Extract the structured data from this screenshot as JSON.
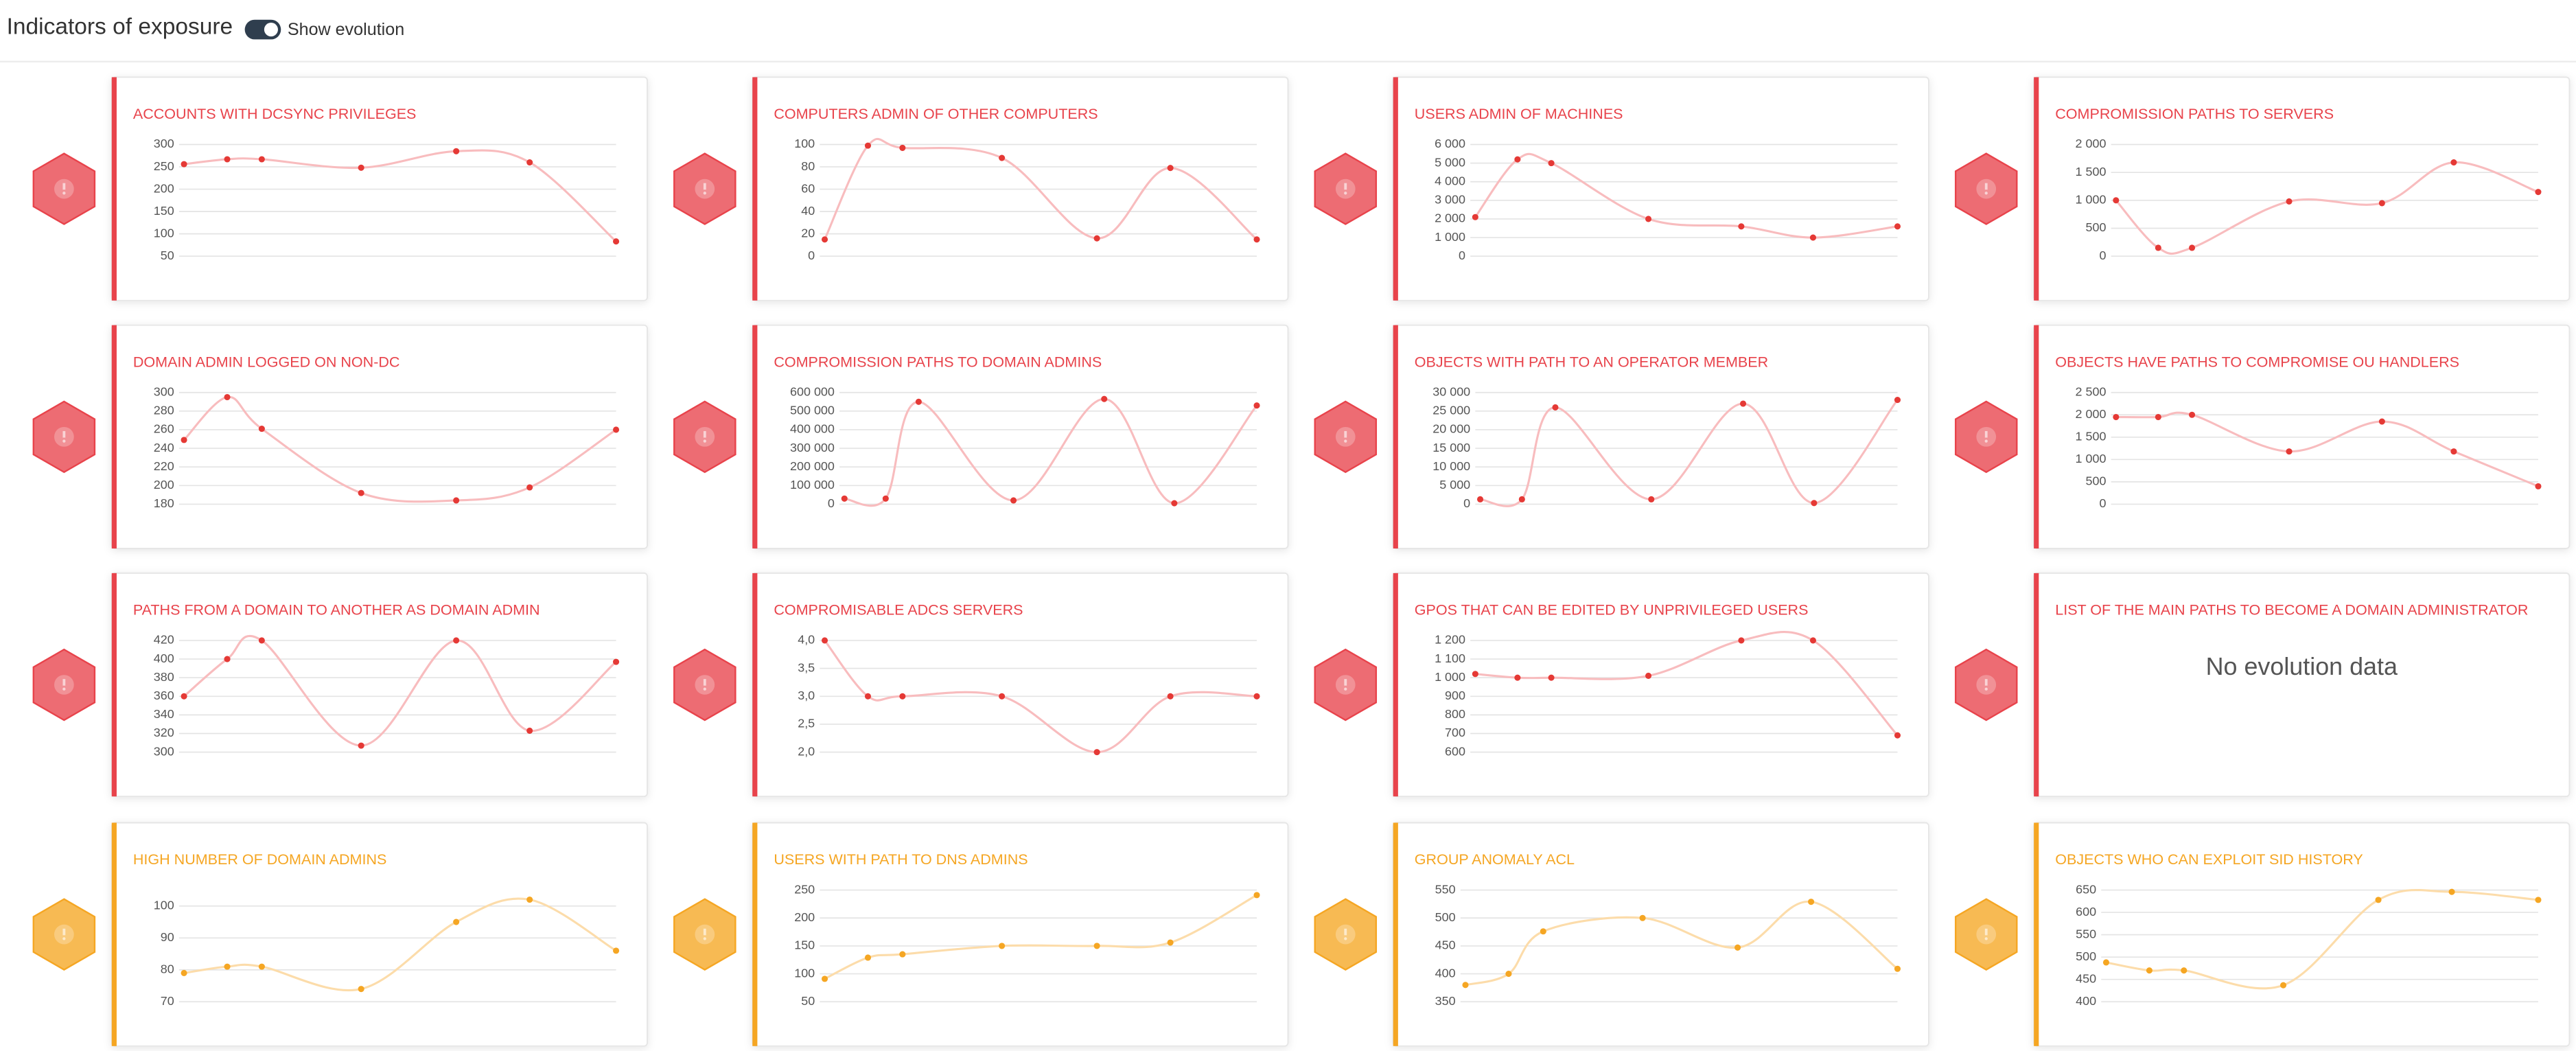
{
  "header": {
    "title": "Indicators of exposure",
    "toggle_label": "Show evolution"
  },
  "cards": [
    {
      "title": "ACCOUNTS WITH DCSYNC PRIVILEGES",
      "color": "#e8434b",
      "chart_data": {
        "type": "line",
        "x": [
          0,
          10,
          18,
          41,
          63,
          80,
          100
        ],
        "xlim": [
          0,
          100
        ],
        "values": [
          256,
          267,
          267,
          248,
          285,
          260,
          83
        ],
        "ylim": [
          50,
          300
        ],
        "yticks": [
          50,
          100,
          150,
          200,
          250,
          300
        ],
        "line_color": "#f8bcbe",
        "color": "#e53935"
      }
    },
    {
      "title": "COMPUTERS ADMIN OF OTHER COMPUTERS",
      "color": "#e8434b",
      "chart_data": {
        "type": "line",
        "x": [
          0,
          10,
          18,
          41,
          63,
          80,
          100
        ],
        "xlim": [
          0,
          100
        ],
        "values": [
          15,
          99,
          97,
          88,
          16,
          79,
          15
        ],
        "ylim": [
          0,
          100
        ],
        "yticks": [
          0,
          20,
          40,
          60,
          80,
          100
        ],
        "line_color": "#f8bcbe",
        "color": "#e53935"
      }
    },
    {
      "title": "USERS ADMIN OF MACHINES",
      "color": "#e8434b",
      "chart_data": {
        "type": "line",
        "x": [
          0,
          10,
          18,
          41,
          63,
          80,
          100
        ],
        "xlim": [
          0,
          100
        ],
        "values": [
          2100,
          5200,
          5000,
          2000,
          1600,
          1000,
          1600
        ],
        "ylim": [
          0,
          6000
        ],
        "yticks": [
          0,
          {
            "value": 1000,
            "label": "1 000"
          },
          {
            "value": 2000,
            "label": "2 000"
          },
          {
            "value": 3000,
            "label": "3 000"
          },
          {
            "value": 4000,
            "label": "4 000"
          },
          {
            "value": 5000,
            "label": "5 000"
          },
          {
            "value": 6000,
            "label": "6 000"
          }
        ],
        "line_color": "#f8bcbe",
        "color": "#e53935"
      }
    },
    {
      "title": "COMPROMISSION PATHS TO SERVERS",
      "color": "#e8434b",
      "chart_data": {
        "type": "line",
        "x": [
          0,
          10,
          18,
          41,
          63,
          80,
          100
        ],
        "xlim": [
          0,
          100
        ],
        "values": [
          1000,
          150,
          150,
          980,
          950,
          1680,
          1150
        ],
        "ylim": [
          0,
          2000
        ],
        "yticks": [
          0,
          500,
          {
            "value": 1000,
            "label": "1 000"
          },
          {
            "value": 1500,
            "label": "1 500"
          },
          {
            "value": 2000,
            "label": "2 000"
          }
        ],
        "line_color": "#f8bcbe",
        "color": "#e53935"
      }
    },
    {
      "title": "DOMAIN ADMIN LOGGED ON NON-DC",
      "color": "#e8434b",
      "chart_data": {
        "type": "line",
        "x": [
          0,
          10,
          18,
          41,
          63,
          80,
          100
        ],
        "xlim": [
          0,
          100
        ],
        "values": [
          249,
          295,
          261,
          192,
          184,
          198,
          260
        ],
        "ylim": [
          180,
          300
        ],
        "yticks": [
          180,
          200,
          220,
          240,
          260,
          280,
          300
        ],
        "line_color": "#f8bcbe",
        "color": "#e53935"
      }
    },
    {
      "title": "COMPROMISSION PATHS TO DOMAIN ADMINS",
      "color": "#e8434b",
      "chart_data": {
        "type": "line",
        "x": [
          0,
          10,
          18,
          41,
          63,
          80,
          100
        ],
        "xlim": [
          0,
          100
        ],
        "values": [
          30000,
          30000,
          550000,
          20000,
          565000,
          5000,
          530000
        ],
        "ylim": [
          0,
          600000
        ],
        "yticks": [
          0,
          {
            "value": 100000,
            "label": "100 000"
          },
          {
            "value": 200000,
            "label": "200 000"
          },
          {
            "value": 300000,
            "label": "300 000"
          },
          {
            "value": 400000,
            "label": "400 000"
          },
          {
            "value": 500000,
            "label": "500 000"
          },
          {
            "value": 600000,
            "label": "600 000"
          }
        ],
        "line_color": "#f8bcbe",
        "color": "#e53935"
      }
    },
    {
      "title": "OBJECTS WITH PATH TO AN OPERATOR MEMBER",
      "color": "#e8434b",
      "chart_data": {
        "type": "line",
        "x": [
          0,
          10,
          18,
          41,
          63,
          80,
          100
        ],
        "xlim": [
          0,
          100
        ],
        "values": [
          1300,
          1300,
          26000,
          1300,
          27000,
          300,
          28000
        ],
        "ylim": [
          0,
          30000
        ],
        "yticks": [
          0,
          {
            "value": 5000,
            "label": "5 000"
          },
          {
            "value": 10000,
            "label": "10 000"
          },
          {
            "value": 15000,
            "label": "15 000"
          },
          {
            "value": 20000,
            "label": "20 000"
          },
          {
            "value": 25000,
            "label": "25 000"
          },
          {
            "value": 30000,
            "label": "30 000"
          }
        ],
        "line_color": "#f8bcbe",
        "color": "#e53935"
      }
    },
    {
      "title": "OBJECTS HAVE PATHS TO COMPROMISE OU HANDLERS",
      "color": "#e8434b",
      "chart_data": {
        "type": "line",
        "x": [
          0,
          10,
          18,
          41,
          63,
          80,
          100
        ],
        "xlim": [
          0,
          100
        ],
        "values": [
          1950,
          1950,
          2000,
          1180,
          1850,
          1180,
          400
        ],
        "ylim": [
          0,
          2500
        ],
        "yticks": [
          0,
          500,
          {
            "value": 1000,
            "label": "1 000"
          },
          {
            "value": 1500,
            "label": "1 500"
          },
          {
            "value": 2000,
            "label": "2 000"
          },
          {
            "value": 2500,
            "label": "2 500"
          }
        ],
        "line_color": "#f8bcbe",
        "color": "#e53935"
      }
    },
    {
      "title": "PATHS FROM A DOMAIN TO ANOTHER AS DOMAIN ADMIN",
      "color": "#e8434b",
      "chart_data": {
        "type": "line",
        "x": [
          0,
          10,
          18,
          41,
          63,
          80,
          100
        ],
        "xlim": [
          0,
          100
        ],
        "values": [
          360,
          400,
          420,
          307,
          420,
          323,
          397
        ],
        "ylim": [
          300,
          420
        ],
        "yticks": [
          300,
          320,
          340,
          360,
          380,
          400,
          420
        ],
        "line_color": "#f8bcbe",
        "color": "#e53935"
      }
    },
    {
      "title": "COMPROMISABLE ADCS SERVERS",
      "color": "#e8434b",
      "chart_data": {
        "type": "line",
        "x": [
          0,
          10,
          18,
          41,
          63,
          80,
          100
        ],
        "xlim": [
          0,
          100
        ],
        "values": [
          4,
          3,
          3,
          3,
          2,
          3,
          3
        ],
        "ylim": [
          2,
          4
        ],
        "yticks": [
          {
            "value": 2,
            "label": "2,0"
          },
          {
            "value": 2.5,
            "label": "2,5"
          },
          {
            "value": 3,
            "label": "3,0"
          },
          {
            "value": 3.5,
            "label": "3,5"
          },
          {
            "value": 4,
            "label": "4,0"
          }
        ],
        "line_color": "#f8bcbe",
        "color": "#e53935"
      }
    },
    {
      "title": "GPOS THAT CAN BE EDITED BY UNPRIVILEGED USERS",
      "color": "#e8434b",
      "chart_data": {
        "type": "line",
        "x": [
          0,
          10,
          18,
          41,
          63,
          80,
          100
        ],
        "xlim": [
          0,
          100
        ],
        "values": [
          1020,
          1000,
          1000,
          1010,
          1200,
          1200,
          690
        ],
        "ylim": [
          600,
          1200
        ],
        "yticks": [
          600,
          700,
          800,
          900,
          {
            "value": 1000,
            "label": "1 000"
          },
          {
            "value": 1100,
            "label": "1 100"
          },
          {
            "value": 1200,
            "label": "1 200"
          }
        ],
        "line_color": "#f8bcbe",
        "color": "#e53935"
      }
    },
    {
      "title": "LIST OF THE MAIN PATHS TO BECOME A DOMAIN ADMINISTRATOR",
      "color": "#e8434b",
      "message": "No evolution data"
    },
    {
      "title": "HIGH NUMBER OF DOMAIN ADMINS",
      "color": "#f5a623",
      "chart_data": {
        "type": "line",
        "x": [
          0,
          10,
          18,
          41,
          63,
          80,
          100
        ],
        "xlim": [
          0,
          100
        ],
        "values": [
          79,
          81,
          81,
          74,
          95,
          102,
          86
        ],
        "ylim": [
          70,
          105
        ],
        "yticks": [
          70,
          80,
          90,
          100
        ],
        "line_color": "#fcdcaa",
        "color": "#f5a623"
      }
    },
    {
      "title": "USERS WITH PATH TO DNS ADMINS",
      "color": "#f5a623",
      "chart_data": {
        "type": "line",
        "x": [
          0,
          10,
          18,
          41,
          63,
          80,
          100
        ],
        "xlim": [
          0,
          100
        ],
        "values": [
          91,
          129,
          135,
          150,
          150,
          156,
          241
        ],
        "ylim": [
          50,
          250
        ],
        "yticks": [
          50,
          100,
          150,
          200,
          250
        ],
        "line_color": "#fcdcaa",
        "color": "#f5a623"
      }
    },
    {
      "title": "GROUP ANOMALY ACL",
      "color": "#f5a623",
      "chart_data": {
        "type": "line",
        "x": [
          0,
          10,
          18,
          41,
          63,
          80,
          100
        ],
        "xlim": [
          0,
          100
        ],
        "values": [
          380,
          400,
          476,
          500,
          447,
          529,
          409
        ],
        "ylim": [
          350,
          550
        ],
        "yticks": [
          350,
          400,
          450,
          500,
          550
        ],
        "line_color": "#fcdcaa",
        "color": "#f5a623"
      }
    },
    {
      "title": "OBJECTS WHO CAN EXPLOIT SID HISTORY",
      "color": "#f5a623",
      "chart_data": {
        "type": "line",
        "x": [
          0,
          10,
          18,
          41,
          63,
          80,
          100
        ],
        "xlim": [
          0,
          100
        ],
        "values": [
          488,
          470,
          470,
          437,
          628,
          646,
          628
        ],
        "ylim": [
          400,
          650
        ],
        "yticks": [
          400,
          450,
          500,
          550,
          600,
          650
        ],
        "line_color": "#fcdcaa",
        "color": "#f5a623"
      }
    }
  ]
}
